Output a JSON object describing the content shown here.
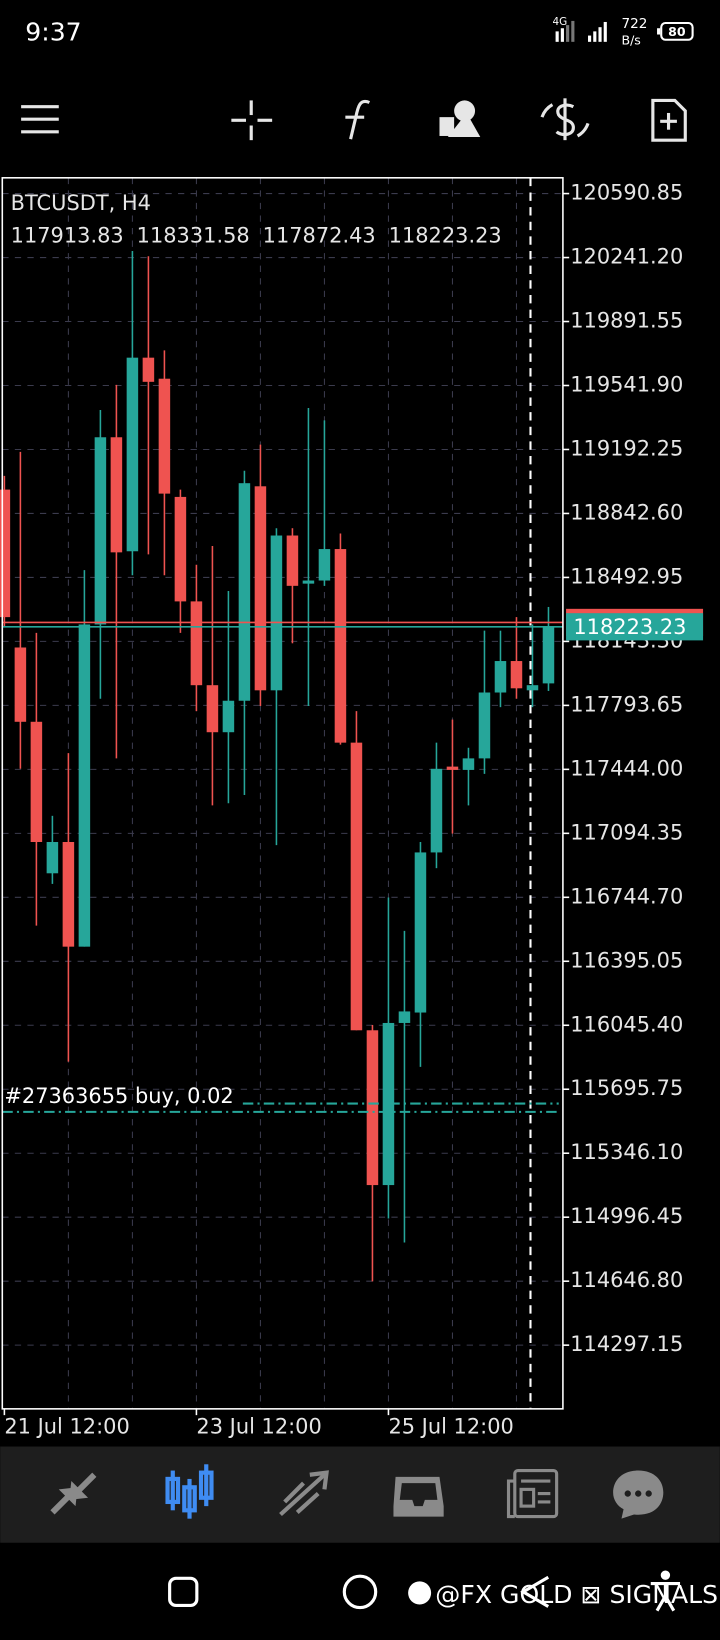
{
  "status_bar": {
    "time": "9:37",
    "network": "4G",
    "speed": "722",
    "speed_unit": "B/s",
    "battery": "80"
  },
  "chart_data": {
    "type": "candlestick",
    "title": "BTCUSDT, H4",
    "categories": [
      "21 Jul 12:00",
      null,
      null,
      null,
      null,
      null,
      null,
      null,
      null,
      null,
      null,
      null,
      "23 Jul 12:00",
      null,
      null,
      null,
      null,
      null,
      null,
      null,
      null,
      null,
      null,
      null,
      "25 Jul 12:00",
      null,
      null,
      null,
      null,
      null,
      null,
      null,
      null,
      null,
      null
    ],
    "open": [
      118973,
      118110,
      117704,
      116876,
      117047,
      116475,
      118236,
      119259,
      118636,
      119694,
      119579,
      118933,
      118362,
      117904,
      117647,
      117819,
      118991,
      117876,
      118722,
      118459,
      118476,
      118648,
      117590,
      116018,
      115172,
      116058,
      116115,
      116990,
      117459,
      117441,
      117504,
      117864,
      118036,
      117876,
      117913.83
    ],
    "high": [
      119048,
      119179,
      118190,
      117190,
      117533,
      118533,
      119408,
      119545,
      120277,
      120248,
      119734,
      118973,
      118562,
      118665,
      118419,
      119076,
      119219,
      118762,
      118762,
      119419,
      119351,
      118733,
      117762,
      116047,
      116744,
      116561,
      117047,
      117590,
      117716,
      117562,
      118202,
      118202,
      118276,
      118236,
      118331.58
    ],
    "low": [
      118219,
      117447,
      116590,
      116818,
      115847,
      116475,
      117830,
      117504,
      118505,
      118619,
      118505,
      118190,
      117762,
      117247,
      117259,
      117304,
      117790,
      117030,
      118133,
      117790,
      118447,
      117579,
      116018,
      114646,
      114989,
      114858,
      115818,
      116904,
      117093,
      117247,
      117419,
      117784,
      117830,
      117784,
      117872.43
    ],
    "close": [
      118276,
      117704,
      117047,
      117047,
      116475,
      118236,
      119259,
      118630,
      119694,
      119562,
      118951,
      118362,
      117904,
      117647,
      117819,
      119008,
      117876,
      118722,
      118447,
      118476,
      118648,
      117590,
      116018,
      115172,
      116058,
      116121,
      116990,
      117447,
      117441,
      117504,
      117864,
      118036,
      117887,
      117904,
      118223.23
    ],
    "up_color": "#26a69a",
    "down_color": "#ef5350",
    "ylim": [
      113949,
      120677
    ],
    "yticks": [
      {
        "value": 120590.85,
        "label": "120590.85"
      },
      {
        "value": 120241.2,
        "label": "120241.20"
      },
      {
        "value": 119891.55,
        "label": "119891.55"
      },
      {
        "value": 119541.9,
        "label": "119541.90"
      },
      {
        "value": 119192.25,
        "label": "119192.25"
      },
      {
        "value": 118842.6,
        "label": "118842.60"
      },
      {
        "value": 118492.95,
        "label": "118492.95"
      },
      {
        "value": 118143.3,
        "label": "118143.30"
      },
      {
        "value": 117793.65,
        "label": "117793.65"
      },
      {
        "value": 117444,
        "label": "117444.00"
      },
      {
        "value": 117094.35,
        "label": "117094.35"
      },
      {
        "value": 116744.7,
        "label": "116744.70"
      },
      {
        "value": 116395.05,
        "label": "116395.05"
      },
      {
        "value": 116045.4,
        "label": "116045.40"
      },
      {
        "value": 115695.75,
        "label": "115695.75"
      },
      {
        "value": 115346.1,
        "label": "115346.10"
      },
      {
        "value": 114996.45,
        "label": "114996.45"
      },
      {
        "value": 114646.8,
        "label": "114646.80"
      },
      {
        "value": 114297.15,
        "label": "114297.15"
      }
    ],
    "grid": true,
    "bid_line": {
      "value": 118247,
      "color": "#ef5350"
    },
    "orders": [
      {
        "label": "#27363655 buy, 0.02",
        "value": 115572,
        "color": "#26a69a"
      }
    ]
  },
  "watermark": "@FX GOLD ⊠ SIGNALS"
}
